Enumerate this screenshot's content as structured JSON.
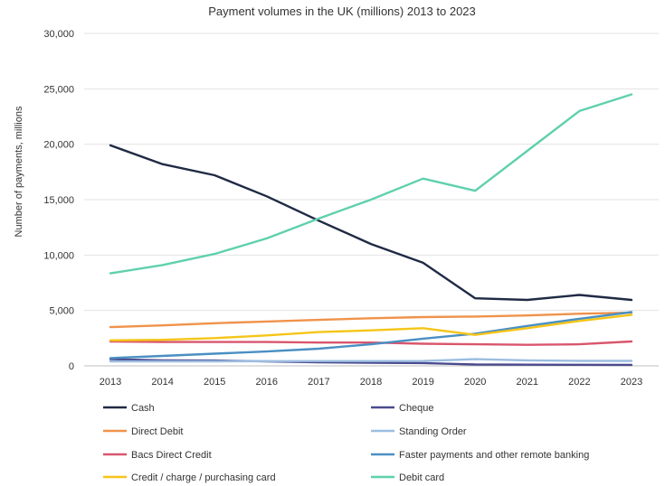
{
  "chart_data": {
    "type": "line",
    "title": "Payment volumes in the UK (millions) 2013 to 2023",
    "xlabel": "",
    "ylabel": "Number of payments, millions",
    "ylim": [
      0,
      30000
    ],
    "yticks": [
      "0",
      "5,000",
      "10,000",
      "15,000",
      "20,000",
      "25,000",
      "30,000"
    ],
    "yticks_values": [
      0,
      5000,
      10000,
      15000,
      20000,
      25000,
      30000
    ],
    "x": [
      "2013",
      "2014",
      "2015",
      "2016",
      "2017",
      "2018",
      "2019",
      "2020",
      "2021",
      "2022",
      "2023"
    ],
    "grid": "horizontal",
    "legend_position": "bottom",
    "series": [
      {
        "name": "Cash",
        "color": "#1f2a44",
        "values": [
          19900,
          18200,
          17200,
          15300,
          13100,
          11000,
          9300,
          6100,
          5950,
          6400,
          5950
        ]
      },
      {
        "name": "Cheque",
        "color": "#4b4a8f",
        "values": [
          600,
          500,
          480,
          400,
          330,
          280,
          250,
          120,
          110,
          100,
          90
        ]
      },
      {
        "name": "Direct Debit",
        "color": "#f0924a",
        "values": [
          3500,
          3650,
          3850,
          4000,
          4150,
          4300,
          4400,
          4450,
          4550,
          4700,
          4800
        ]
      },
      {
        "name": "Standing Order",
        "color": "#9bbde0",
        "values": [
          400,
          400,
          410,
          420,
          430,
          430,
          440,
          600,
          500,
          450,
          450
        ]
      },
      {
        "name": "Bacs Direct Credit",
        "color": "#d9566d",
        "values": [
          2200,
          2150,
          2150,
          2150,
          2100,
          2100,
          2000,
          1950,
          1900,
          1950,
          2200
        ]
      },
      {
        "name": "Faster payments and other remote banking",
        "color": "#4a8fc2",
        "values": [
          700,
          900,
          1100,
          1300,
          1550,
          1950,
          2450,
          2900,
          3600,
          4250,
          4850
        ]
      },
      {
        "name": "Credit / charge / purchasing card",
        "color": "#f5c518",
        "values": [
          2300,
          2350,
          2500,
          2750,
          3050,
          3200,
          3400,
          2800,
          3400,
          4050,
          4600
        ]
      },
      {
        "name": "Debit card",
        "color": "#5fd0ad",
        "values": [
          8350,
          9100,
          10100,
          11500,
          13300,
          15000,
          16900,
          15800,
          19400,
          23000,
          24500
        ]
      }
    ]
  }
}
